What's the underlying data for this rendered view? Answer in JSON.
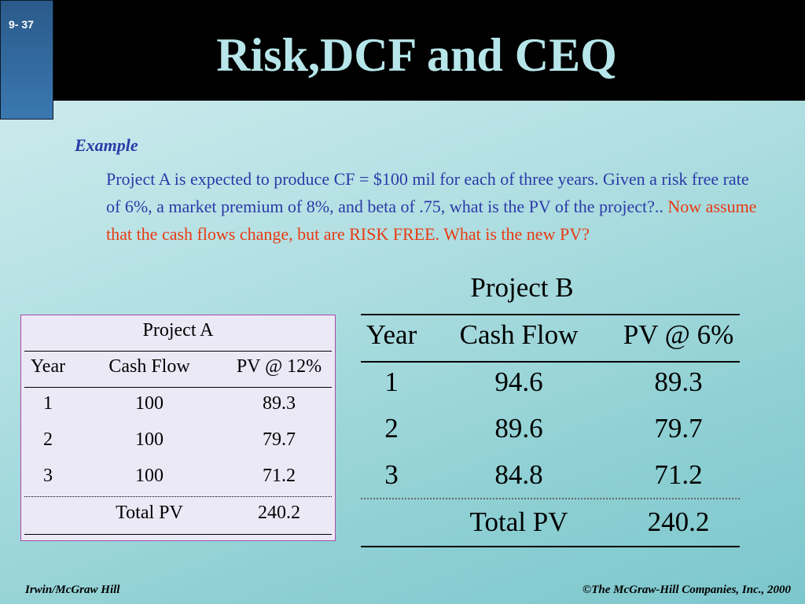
{
  "slide_number": "9- 37",
  "title": "Risk,DCF and CEQ",
  "example_label": "Example",
  "paragraph": {
    "blue": "Project A is expected to produce CF = $100 mil for each of three years. Given a risk free rate of 6%, a market premium of 8%, and beta of .75, what is the PV of the project?.. ",
    "red": "Now assume that the cash flows change, but are RISK FREE.  What is the new PV?"
  },
  "project_a": {
    "title": "Project A",
    "headers": [
      "Year",
      "Cash Flow",
      "PV @ 12%"
    ],
    "rows": [
      [
        "1",
        "100",
        "89.3"
      ],
      [
        "2",
        "100",
        "79.7"
      ],
      [
        "3",
        "100",
        "71.2"
      ]
    ],
    "total_label": "Total PV",
    "total_value": "240.2"
  },
  "project_b": {
    "title": "Project B",
    "headers": [
      "Year",
      "Cash Flow",
      "PV @ 6%"
    ],
    "rows": [
      [
        "1",
        "94.6",
        "89.3"
      ],
      [
        "2",
        "89.6",
        "79.7"
      ],
      [
        "3",
        "84.8",
        "71.2"
      ]
    ],
    "total_label": "Total PV",
    "total_value": "240.2"
  },
  "footer": {
    "left": "Irwin/McGraw Hill",
    "right": "©The McGraw-Hill Companies, Inc., 2000"
  }
}
